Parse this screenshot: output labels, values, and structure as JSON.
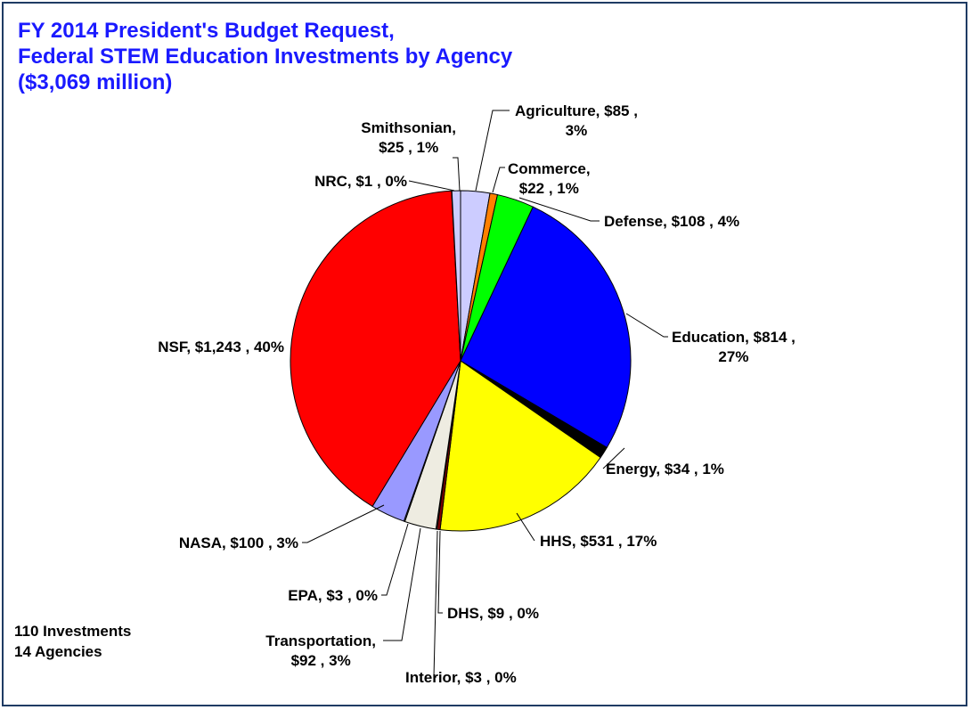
{
  "chart_data": {
    "type": "pie",
    "title": [
      "FY 2014 President's Budget Request,",
      "Federal STEM Education Investments by Agency",
      "($3,069 million)"
    ],
    "slices": [
      {
        "name": "Agriculture",
        "value": 85,
        "percent": "3%",
        "color": "#ccccff",
        "label": [
          "Agriculture, $85 ,",
          "3%"
        ]
      },
      {
        "name": "Commerce",
        "value": 22,
        "percent": "1%",
        "color": "#ff8000",
        "label": [
          "Commerce,",
          "$22 , 1%"
        ]
      },
      {
        "name": "Defense",
        "value": 108,
        "percent": "4%",
        "color": "#00ff00",
        "label": [
          "Defense, $108 , 4%"
        ]
      },
      {
        "name": "Education",
        "value": 814,
        "percent": "27%",
        "color": "#0000ff",
        "label": [
          "Education, $814 ,",
          "27%"
        ]
      },
      {
        "name": "Energy",
        "value": 34,
        "percent": "1%",
        "color": "#000000",
        "label": [
          "Energy, $34 , 1%"
        ]
      },
      {
        "name": "HHS",
        "value": 531,
        "percent": "17%",
        "color": "#ffff00",
        "label": [
          "HHS, $531 , 17%"
        ]
      },
      {
        "name": "DHS",
        "value": 9,
        "percent": "0%",
        "color": "#800000",
        "label": [
          "DHS, $9 , 0%"
        ]
      },
      {
        "name": "Interior",
        "value": 3,
        "percent": "0%",
        "color": "#c0c0c0",
        "label": [
          "Interior, $3 , 0%"
        ]
      },
      {
        "name": "Transportation",
        "value": 92,
        "percent": "3%",
        "color": "#eeece1",
        "label": [
          "Transportation,",
          "$92 , 3%"
        ]
      },
      {
        "name": "EPA",
        "value": 3,
        "percent": "0%",
        "color": "#cfe3f5",
        "label": [
          "EPA, $3 , 0%"
        ]
      },
      {
        "name": "NASA",
        "value": 100,
        "percent": "3%",
        "color": "#9999ff",
        "label": [
          "NASA, $100 , 3%"
        ]
      },
      {
        "name": "NSF",
        "value": 1243,
        "percent": "40%",
        "color": "#ff0000",
        "label": [
          "NSF, $1,243 , 40%"
        ]
      },
      {
        "name": "NRC",
        "value": 1,
        "percent": "0%",
        "color": "#ffffff",
        "label": [
          "NRC, $1 , 0%"
        ]
      },
      {
        "name": "Smithsonian",
        "value": 25,
        "percent": "1%",
        "color": "#ccccff",
        "label": [
          "Smithsonian,",
          "$25 , 1%"
        ]
      }
    ]
  },
  "footnote": {
    "line1": "110 Investments",
    "line2": "14 Agencies"
  },
  "colors": {
    "title": "#1a1aff",
    "frame_border": "#1f3b63",
    "text": "#000000"
  }
}
